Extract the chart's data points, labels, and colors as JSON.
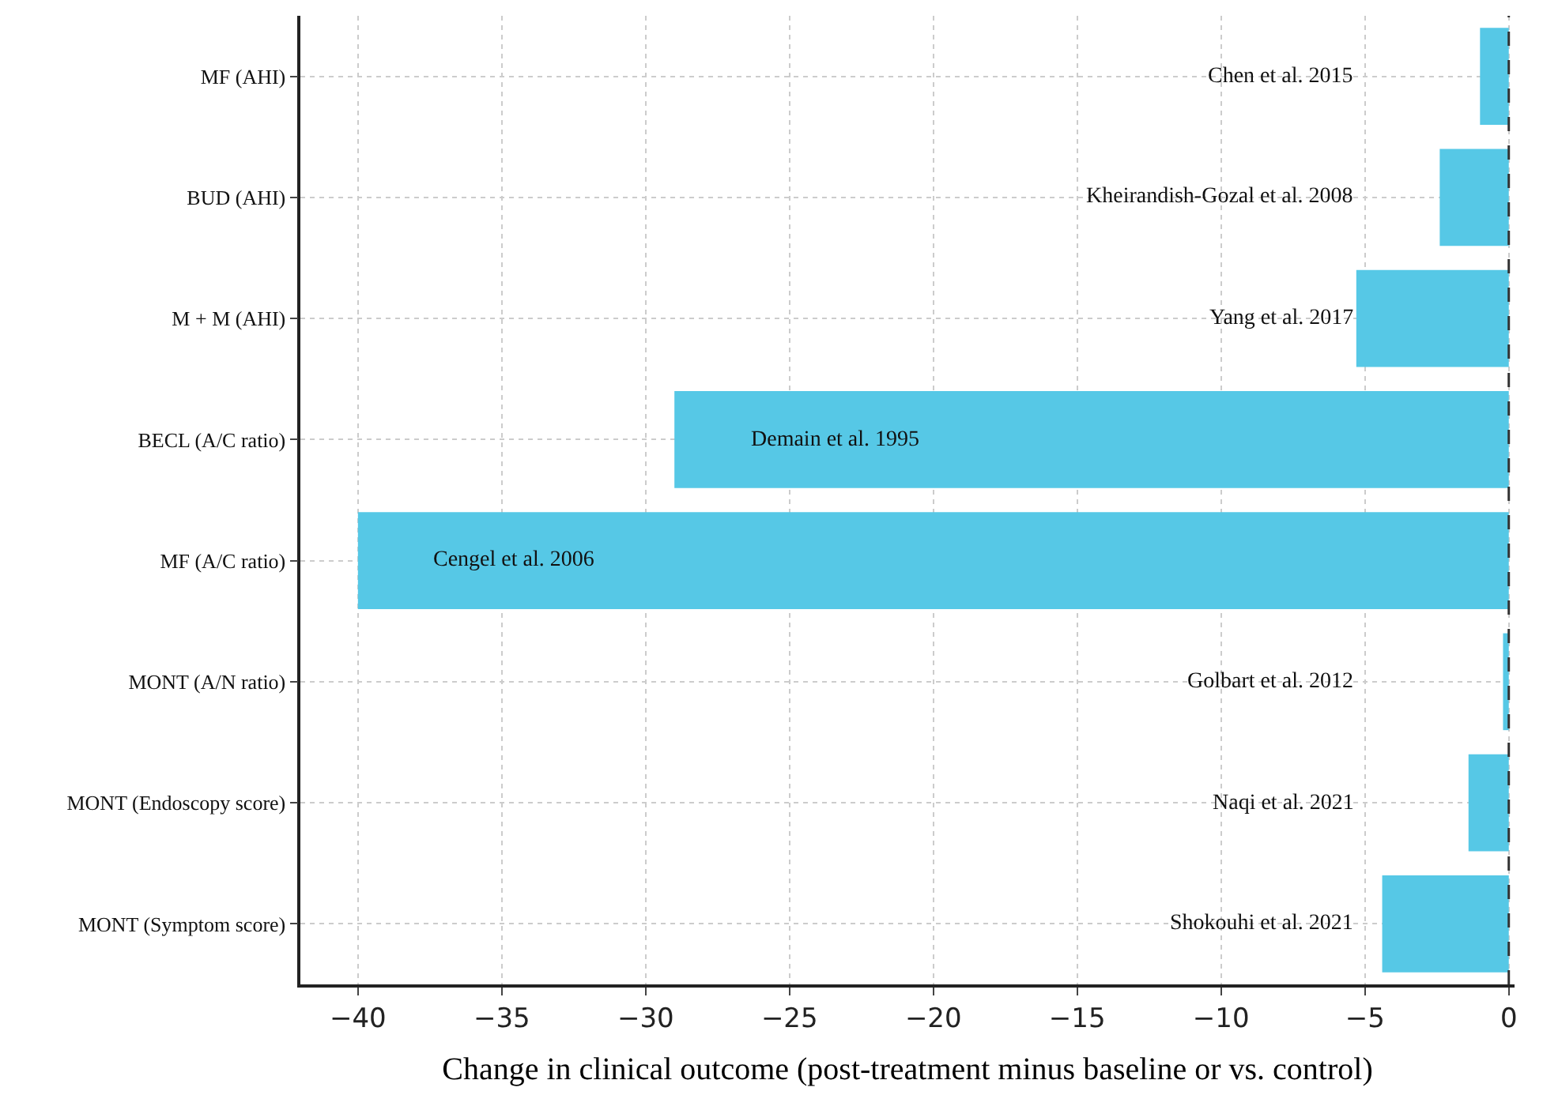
{
  "chart_data": {
    "type": "bar",
    "orientation": "horizontal",
    "xlabel": "Change in clinical outcome (post-treatment minus baseline or vs. control)",
    "categories": [
      "MF (AHI)",
      "BUD (AHI)",
      "M + M (AHI)",
      "BECL (A/C ratio)",
      "MF (A/C ratio)",
      "MONT (A/N ratio)",
      "MONT (Endoscopy score)",
      "MONT (Symptom score)"
    ],
    "values": [
      -1.0,
      -2.4,
      -5.3,
      -29,
      -40,
      -0.2,
      -1.4,
      -4.4
    ],
    "color": "#56c8e6",
    "xlim": [
      -42,
      0.2
    ],
    "xticks": [
      {
        "value": -40,
        "label": "−40"
      },
      {
        "value": -35,
        "label": "−35"
      },
      {
        "value": -30,
        "label": "−30"
      },
      {
        "value": -25,
        "label": "−25"
      },
      {
        "value": -20,
        "label": "−20"
      },
      {
        "value": -15,
        "label": "−15"
      },
      {
        "value": -10,
        "label": "−10"
      },
      {
        "value": -5,
        "label": "−5"
      },
      0
    ],
    "grid": true,
    "ref_lines": [
      {
        "axis": "x",
        "value": 0,
        "label": null,
        "color": "#333333",
        "line_style": "dashed"
      }
    ],
    "annotations": [
      "Chen et al. 2015",
      "Kheirandish-Gozal et al. 2008",
      "Yang et al. 2017",
      "Demain et al. 1995",
      "Cengel et al. 2006",
      "Golbart et al. 2012",
      "Naqi et al. 2021",
      "Shokouhi et al. 2021"
    ]
  }
}
